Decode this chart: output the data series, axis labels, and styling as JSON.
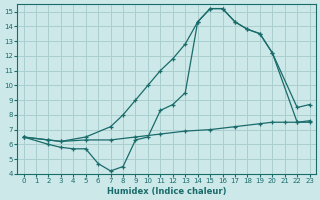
{
  "xlabel": "Humidex (Indice chaleur)",
  "bg_color": "#cce8e8",
  "grid_color": "#aacfcf",
  "line_color": "#1a6b6b",
  "xlim": [
    -0.5,
    23.5
  ],
  "ylim": [
    4,
    15.5
  ],
  "xticks": [
    0,
    1,
    2,
    3,
    4,
    5,
    6,
    7,
    8,
    9,
    10,
    11,
    12,
    13,
    14,
    15,
    16,
    17,
    18,
    19,
    20,
    21,
    22,
    23
  ],
  "yticks": [
    4,
    5,
    6,
    7,
    8,
    9,
    10,
    11,
    12,
    13,
    14,
    15
  ],
  "line1_x": [
    0,
    2,
    3,
    5,
    7,
    8,
    9,
    10,
    11,
    12,
    13,
    14,
    15,
    16,
    17,
    18,
    19,
    20,
    22,
    23
  ],
  "line1_y": [
    6.5,
    6.3,
    6.2,
    6.5,
    7.2,
    8.0,
    9.0,
    10.0,
    11.0,
    11.8,
    12.8,
    14.3,
    15.2,
    15.2,
    14.3,
    13.8,
    13.5,
    12.2,
    7.5,
    7.5
  ],
  "line2_x": [
    0,
    2,
    3,
    4,
    5,
    6,
    7,
    8,
    9,
    10,
    11,
    12,
    13,
    14,
    15,
    16,
    17,
    18,
    19,
    20,
    22,
    23
  ],
  "line2_y": [
    6.5,
    6.0,
    5.8,
    5.7,
    5.7,
    4.7,
    4.2,
    4.5,
    6.3,
    6.5,
    8.3,
    8.7,
    9.5,
    14.3,
    15.2,
    15.2,
    14.3,
    13.8,
    13.5,
    12.2,
    8.5,
    8.7
  ],
  "line3_x": [
    0,
    2,
    3,
    5,
    7,
    9,
    11,
    13,
    15,
    17,
    19,
    20,
    21,
    22,
    23
  ],
  "line3_y": [
    6.5,
    6.3,
    6.2,
    6.3,
    6.3,
    6.5,
    6.7,
    6.9,
    7.0,
    7.2,
    7.4,
    7.5,
    7.5,
    7.5,
    7.6
  ]
}
